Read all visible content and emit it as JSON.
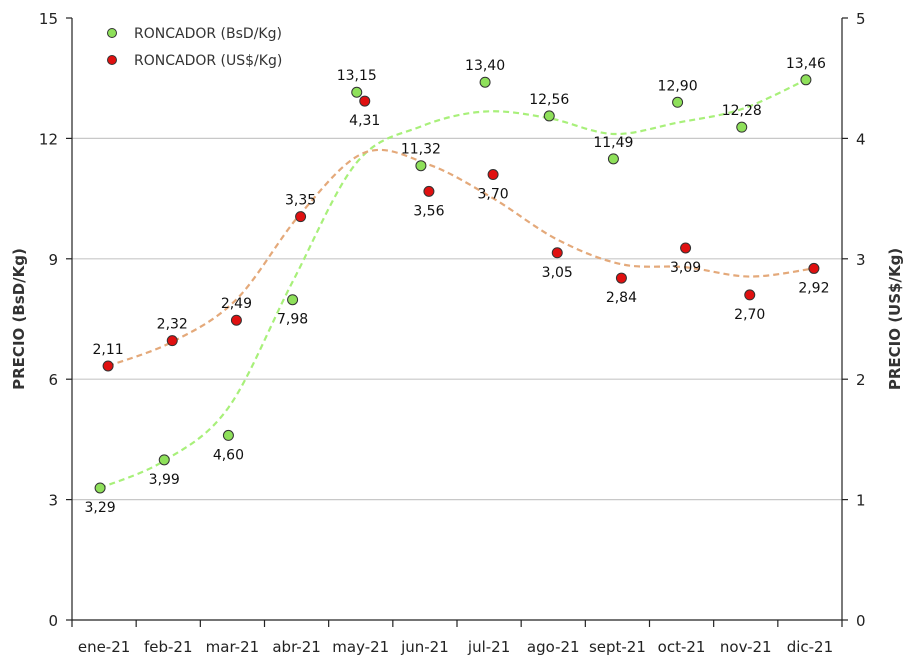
{
  "chart_data": {
    "type": "scatter",
    "categories": [
      "ene-21",
      "feb-21",
      "mar-21",
      "abr-21",
      "may-21",
      "jun-21",
      "jul-21",
      "ago-21",
      "sept-21",
      "oct-21",
      "nov-21",
      "dic-21"
    ],
    "series": [
      {
        "name": "RONCADOR (BsD/Kg)",
        "axis": "left",
        "color": "#8ee05a",
        "trend_color": "#a8f07a",
        "values": [
          3.29,
          3.99,
          4.6,
          7.98,
          13.15,
          11.32,
          13.4,
          12.56,
          11.49,
          12.9,
          12.28,
          13.46
        ],
        "labels": [
          "3,29",
          "3,99",
          "4,60",
          "7,98",
          "13,15",
          "11,32",
          "13,40",
          "12,56",
          "11,49",
          "12,90",
          "12,28",
          "13,46"
        ]
      },
      {
        "name": "RONCADOR (US$/Kg)",
        "axis": "right",
        "color": "#e01010",
        "trend_color": "#e4a97a",
        "values": [
          2.11,
          2.32,
          2.49,
          3.35,
          4.31,
          3.56,
          3.7,
          3.05,
          2.84,
          3.09,
          2.7,
          2.92
        ],
        "labels": [
          "2,11",
          "2,32",
          "2,49",
          "3,35",
          "4,31",
          "3,56",
          "3,70",
          "3,05",
          "2,84",
          "3,09",
          "2,70",
          "2,92"
        ]
      }
    ],
    "y_left": {
      "label": "PRECIO (BsD/Kg)",
      "range": [
        0,
        15
      ],
      "ticks": [
        0,
        3,
        6,
        9,
        12,
        15
      ],
      "tick_labels": [
        "0",
        "3",
        "6",
        "9",
        "12",
        "15"
      ]
    },
    "y_right": {
      "label": "PRECIO (US$/Kg)",
      "range": [
        0,
        5
      ],
      "ticks": [
        0,
        1,
        2,
        3,
        4,
        5
      ],
      "tick_labels": [
        "0",
        "1",
        "2",
        "3",
        "4",
        "5"
      ]
    },
    "grid": "horizontal",
    "legend": "top-left"
  }
}
